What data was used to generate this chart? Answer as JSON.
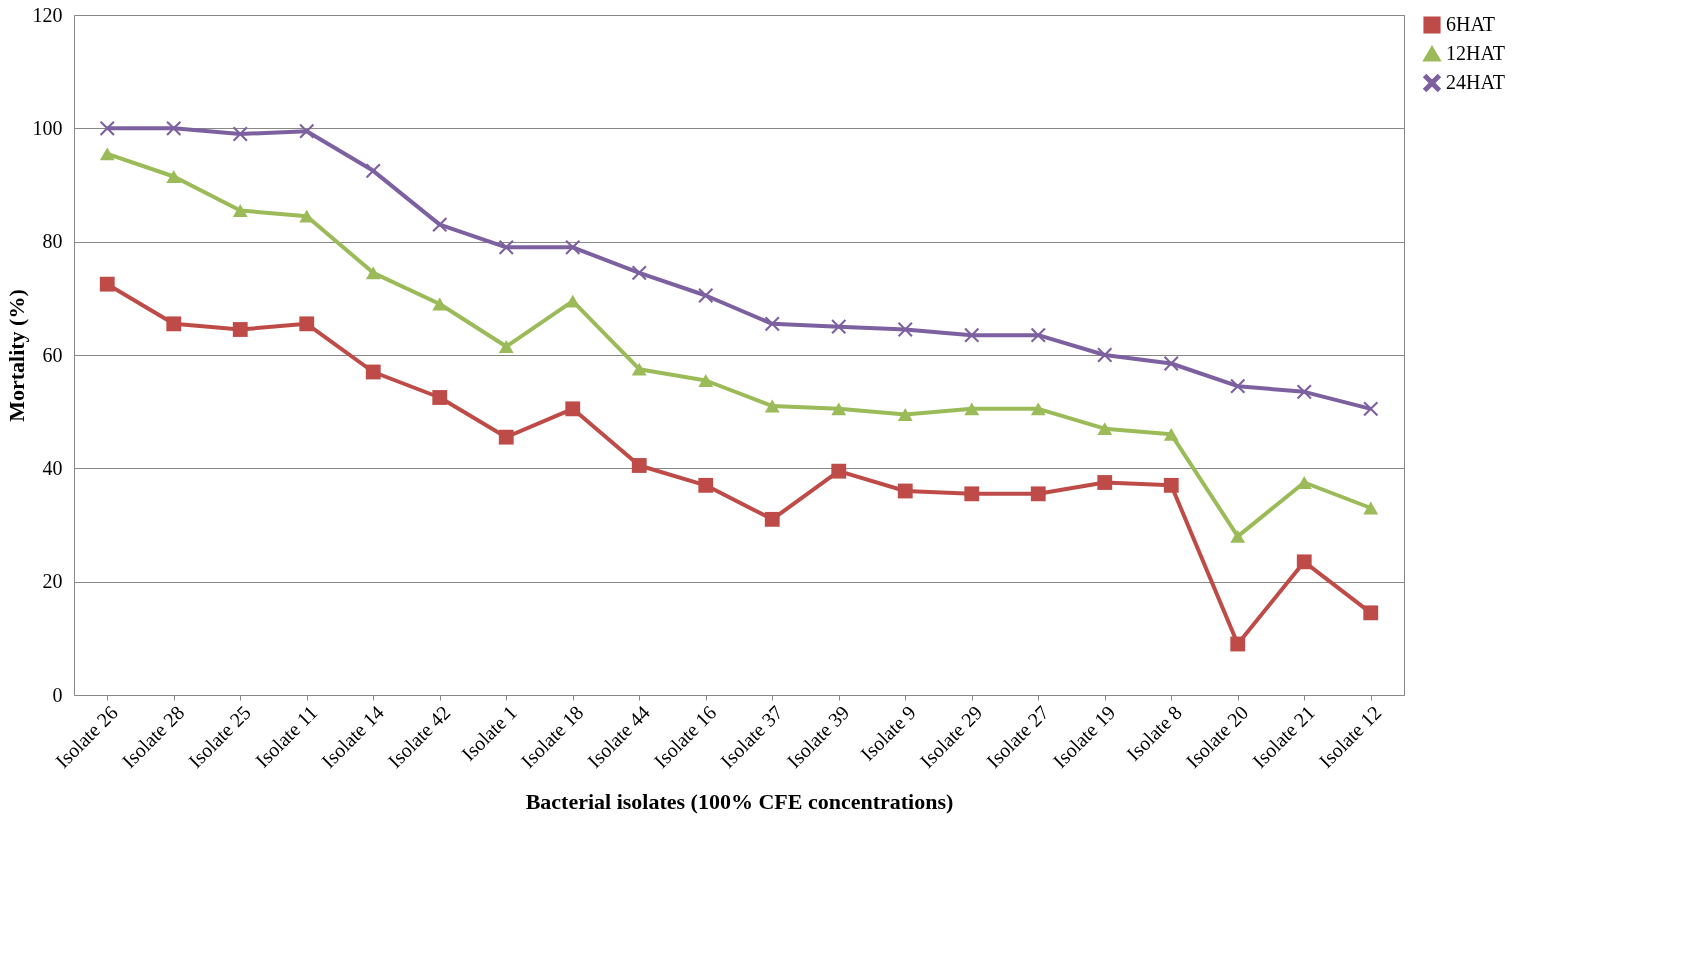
{
  "chart_data": {
    "type": "line",
    "xlabel": "Bacterial isolates (100% CFE concentrations)",
    "ylabel": "Mortality (%)",
    "categories": [
      "Isolate 26",
      "Isolate 28",
      "Isolate 25",
      "Isolate 11",
      "Isolate 14",
      "Isolate 42",
      "Isolate 1",
      "Isolate 18",
      "Isolate 44",
      "Isolate 16",
      "Isolate 37",
      "Isolate 39",
      "Isolate 9",
      "Isolate 29",
      "Isolate 27",
      "Isolate 19",
      "Isolate 8",
      "Isolate 20",
      "Isolate 21",
      "Isolate 12"
    ],
    "series": [
      {
        "name": "6HAT",
        "color": "#be4b48",
        "marker": "square",
        "values": [
          72.5,
          65.5,
          64.5,
          65.5,
          57,
          52.5,
          45.5,
          50.5,
          40.5,
          37,
          31,
          39.5,
          36,
          35.5,
          35.5,
          37.5,
          37,
          9,
          23.5,
          14.5
        ]
      },
      {
        "name": "12HAT",
        "color": "#9bbb59",
        "marker": "triangle",
        "values": [
          95.5,
          91.5,
          85.5,
          84.5,
          74.5,
          69,
          61.5,
          69.5,
          57.5,
          55.5,
          51,
          50.5,
          49.5,
          50.5,
          50.5,
          47,
          46,
          28,
          37.5,
          33
        ]
      },
      {
        "name": "24HAT",
        "color": "#7d60a0",
        "marker": "cross",
        "values": [
          100,
          100,
          99,
          99.5,
          92.5,
          83,
          79,
          79,
          74.5,
          70.5,
          65.5,
          65,
          64.5,
          63.5,
          63.5,
          60,
          58.5,
          54.5,
          53.5,
          50.5
        ]
      }
    ],
    "ylim": [
      0,
      120
    ],
    "yticks": [
      0,
      20,
      40,
      60,
      80,
      100,
      120
    ],
    "grid": "y",
    "legend": "right"
  }
}
